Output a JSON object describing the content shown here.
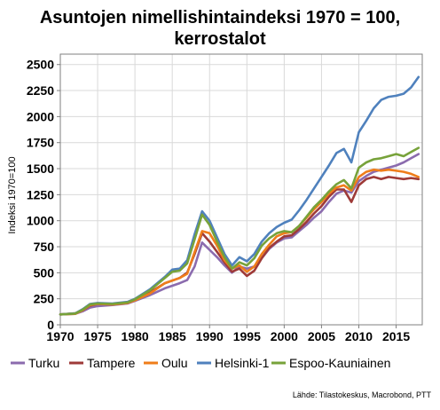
{
  "chart_data": {
    "type": "line",
    "title": [
      "Asuntojen nimellishintaindeksi 1970 = 100,",
      "kerrostalot"
    ],
    "ylabel": "Indeksi 1970=100",
    "xlabel": "",
    "source": "Lähde: Tilastokeskus, Macrobond, PTT",
    "xlim": [
      1970,
      2018.5
    ],
    "ylim": [
      0,
      2600
    ],
    "x_ticks": [
      1970,
      1975,
      1980,
      1985,
      1990,
      1995,
      2000,
      2005,
      2010,
      2015
    ],
    "y_ticks": [
      0,
      250,
      500,
      750,
      1000,
      1250,
      1500,
      1750,
      2000,
      2250,
      2500
    ],
    "grid": true,
    "legend_position": "bottom",
    "series": [
      {
        "name": "Turku",
        "color": "#8B6BAE",
        "points": [
          [
            1970,
            100
          ],
          [
            1972,
            105
          ],
          [
            1973,
            130
          ],
          [
            1974,
            165
          ],
          [
            1975,
            180
          ],
          [
            1977,
            190
          ],
          [
            1979,
            205
          ],
          [
            1980,
            230
          ],
          [
            1982,
            285
          ],
          [
            1984,
            350
          ],
          [
            1986,
            400
          ],
          [
            1987,
            430
          ],
          [
            1988,
            560
          ],
          [
            1989,
            790
          ],
          [
            1990,
            720
          ],
          [
            1991,
            650
          ],
          [
            1992,
            570
          ],
          [
            1993,
            500
          ],
          [
            1994,
            560
          ],
          [
            1995,
            540
          ],
          [
            1996,
            560
          ],
          [
            1997,
            640
          ],
          [
            1998,
            730
          ],
          [
            1999,
            790
          ],
          [
            2000,
            830
          ],
          [
            2001,
            840
          ],
          [
            2002,
            900
          ],
          [
            2003,
            960
          ],
          [
            2004,
            1030
          ],
          [
            2005,
            1090
          ],
          [
            2006,
            1180
          ],
          [
            2007,
            1260
          ],
          [
            2008,
            1290
          ],
          [
            2009,
            1270
          ],
          [
            2010,
            1380
          ],
          [
            2011,
            1430
          ],
          [
            2012,
            1470
          ],
          [
            2013,
            1490
          ],
          [
            2014,
            1510
          ],
          [
            2015,
            1530
          ],
          [
            2016,
            1560
          ],
          [
            2017,
            1600
          ],
          [
            2018,
            1640
          ]
        ]
      },
      {
        "name": "Tampere",
        "color": "#9E3A38",
        "points": [
          [
            1970,
            100
          ],
          [
            1972,
            110
          ],
          [
            1973,
            140
          ],
          [
            1974,
            185
          ],
          [
            1975,
            200
          ],
          [
            1977,
            195
          ],
          [
            1979,
            210
          ],
          [
            1980,
            240
          ],
          [
            1982,
            310
          ],
          [
            1984,
            400
          ],
          [
            1986,
            450
          ],
          [
            1987,
            500
          ],
          [
            1988,
            680
          ],
          [
            1989,
            880
          ],
          [
            1990,
            800
          ],
          [
            1991,
            700
          ],
          [
            1992,
            600
          ],
          [
            1993,
            510
          ],
          [
            1994,
            540
          ],
          [
            1995,
            470
          ],
          [
            1996,
            520
          ],
          [
            1997,
            640
          ],
          [
            1998,
            740
          ],
          [
            1999,
            800
          ],
          [
            2000,
            850
          ],
          [
            2001,
            860
          ],
          [
            2002,
            920
          ],
          [
            2003,
            990
          ],
          [
            2004,
            1070
          ],
          [
            2005,
            1140
          ],
          [
            2006,
            1230
          ],
          [
            2007,
            1300
          ],
          [
            2008,
            1300
          ],
          [
            2009,
            1180
          ],
          [
            2010,
            1340
          ],
          [
            2011,
            1400
          ],
          [
            2012,
            1420
          ],
          [
            2013,
            1400
          ],
          [
            2014,
            1420
          ],
          [
            2015,
            1410
          ],
          [
            2016,
            1400
          ],
          [
            2017,
            1410
          ],
          [
            2018,
            1400
          ]
        ]
      },
      {
        "name": "Oulu",
        "color": "#EF7D1A",
        "points": [
          [
            1970,
            100
          ],
          [
            1972,
            105
          ],
          [
            1973,
            140
          ],
          [
            1974,
            190
          ],
          [
            1975,
            200
          ],
          [
            1977,
            195
          ],
          [
            1979,
            210
          ],
          [
            1980,
            235
          ],
          [
            1982,
            300
          ],
          [
            1984,
            400
          ],
          [
            1986,
            450
          ],
          [
            1987,
            490
          ],
          [
            1988,
            700
          ],
          [
            1989,
            900
          ],
          [
            1990,
            880
          ],
          [
            1991,
            760
          ],
          [
            1992,
            620
          ],
          [
            1993,
            540
          ],
          [
            1994,
            570
          ],
          [
            1995,
            510
          ],
          [
            1996,
            560
          ],
          [
            1997,
            680
          ],
          [
            1998,
            770
          ],
          [
            1999,
            850
          ],
          [
            2000,
            880
          ],
          [
            2001,
            890
          ],
          [
            2002,
            950
          ],
          [
            2003,
            1030
          ],
          [
            2004,
            1110
          ],
          [
            2005,
            1180
          ],
          [
            2006,
            1260
          ],
          [
            2007,
            1320
          ],
          [
            2008,
            1340
          ],
          [
            2009,
            1290
          ],
          [
            2010,
            1420
          ],
          [
            2011,
            1470
          ],
          [
            2012,
            1490
          ],
          [
            2013,
            1480
          ],
          [
            2014,
            1490
          ],
          [
            2015,
            1480
          ],
          [
            2016,
            1470
          ],
          [
            2017,
            1450
          ],
          [
            2018,
            1420
          ]
        ]
      },
      {
        "name": "Helsinki-1",
        "color": "#4F81BD",
        "points": [
          [
            1970,
            100
          ],
          [
            1972,
            110
          ],
          [
            1973,
            150
          ],
          [
            1974,
            200
          ],
          [
            1975,
            210
          ],
          [
            1977,
            205
          ],
          [
            1979,
            220
          ],
          [
            1980,
            250
          ],
          [
            1982,
            340
          ],
          [
            1984,
            460
          ],
          [
            1985,
            530
          ],
          [
            1986,
            540
          ],
          [
            1987,
            620
          ],
          [
            1988,
            870
          ],
          [
            1989,
            1090
          ],
          [
            1990,
            1000
          ],
          [
            1991,
            840
          ],
          [
            1992,
            680
          ],
          [
            1993,
            570
          ],
          [
            1994,
            650
          ],
          [
            1995,
            610
          ],
          [
            1996,
            680
          ],
          [
            1997,
            800
          ],
          [
            1998,
            880
          ],
          [
            1999,
            940
          ],
          [
            2000,
            980
          ],
          [
            2001,
            1010
          ],
          [
            2002,
            1100
          ],
          [
            2003,
            1200
          ],
          [
            2004,
            1310
          ],
          [
            2005,
            1420
          ],
          [
            2006,
            1530
          ],
          [
            2007,
            1650
          ],
          [
            2008,
            1690
          ],
          [
            2009,
            1560
          ],
          [
            2010,
            1850
          ],
          [
            2011,
            1960
          ],
          [
            2012,
            2080
          ],
          [
            2013,
            2160
          ],
          [
            2014,
            2190
          ],
          [
            2015,
            2200
          ],
          [
            2016,
            2220
          ],
          [
            2017,
            2280
          ],
          [
            2018,
            2380
          ]
        ]
      },
      {
        "name": "Espoo-Kauniainen",
        "color": "#77A23A",
        "points": [
          [
            1970,
            100
          ],
          [
            1972,
            108
          ],
          [
            1973,
            145
          ],
          [
            1974,
            195
          ],
          [
            1975,
            205
          ],
          [
            1977,
            200
          ],
          [
            1979,
            215
          ],
          [
            1980,
            245
          ],
          [
            1982,
            330
          ],
          [
            1984,
            450
          ],
          [
            1985,
            510
          ],
          [
            1986,
            520
          ],
          [
            1987,
            590
          ],
          [
            1988,
            820
          ],
          [
            1989,
            1060
          ],
          [
            1990,
            960
          ],
          [
            1991,
            800
          ],
          [
            1992,
            650
          ],
          [
            1993,
            540
          ],
          [
            1994,
            600
          ],
          [
            1995,
            570
          ],
          [
            1996,
            640
          ],
          [
            1997,
            760
          ],
          [
            1998,
            830
          ],
          [
            1999,
            880
          ],
          [
            2000,
            900
          ],
          [
            2001,
            890
          ],
          [
            2002,
            950
          ],
          [
            2003,
            1040
          ],
          [
            2004,
            1130
          ],
          [
            2005,
            1200
          ],
          [
            2006,
            1280
          ],
          [
            2007,
            1350
          ],
          [
            2008,
            1390
          ],
          [
            2009,
            1310
          ],
          [
            2010,
            1510
          ],
          [
            2011,
            1560
          ],
          [
            2012,
            1590
          ],
          [
            2013,
            1600
          ],
          [
            2014,
            1620
          ],
          [
            2015,
            1640
          ],
          [
            2016,
            1620
          ],
          [
            2017,
            1660
          ],
          [
            2018,
            1700
          ]
        ]
      }
    ]
  }
}
